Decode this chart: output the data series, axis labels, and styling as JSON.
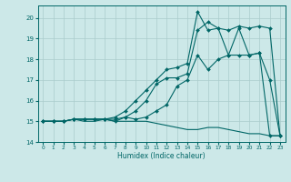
{
  "xlabel": "Humidex (Indice chaleur)",
  "bg_color": "#cce8e8",
  "grid_color": "#aacccc",
  "line_color": "#006666",
  "xlim": [
    -0.5,
    23.5
  ],
  "ylim": [
    14.0,
    20.6
  ],
  "yticks": [
    14,
    15,
    16,
    17,
    18,
    19,
    20
  ],
  "xticks": [
    0,
    1,
    2,
    3,
    4,
    5,
    6,
    7,
    8,
    9,
    10,
    11,
    12,
    13,
    14,
    15,
    16,
    17,
    18,
    19,
    20,
    21,
    22,
    23
  ],
  "series": [
    {
      "x": [
        0,
        1,
        2,
        3,
        4,
        5,
        6,
        7,
        8,
        9,
        10,
        11,
        12,
        13,
        14,
        15,
        16,
        17,
        18,
        19,
        20,
        21,
        22,
        23
      ],
      "y": [
        15.0,
        15.0,
        15.0,
        15.1,
        15.1,
        15.1,
        15.1,
        15.2,
        15.5,
        16.0,
        16.5,
        17.0,
        17.5,
        17.6,
        17.8,
        20.3,
        19.4,
        19.5,
        18.2,
        19.5,
        18.2,
        18.3,
        14.3,
        14.3
      ],
      "marker": true
    },
    {
      "x": [
        0,
        1,
        2,
        3,
        4,
        5,
        6,
        7,
        8,
        9,
        10,
        11,
        12,
        13,
        14,
        15,
        16,
        17,
        18,
        19,
        20,
        21,
        22,
        23
      ],
      "y": [
        15.0,
        15.0,
        15.0,
        15.1,
        15.1,
        15.1,
        15.1,
        15.1,
        15.2,
        15.5,
        16.0,
        16.8,
        17.1,
        17.1,
        17.3,
        19.4,
        19.8,
        19.5,
        19.4,
        19.6,
        19.5,
        19.6,
        19.5,
        14.3
      ],
      "marker": true
    },
    {
      "x": [
        0,
        1,
        2,
        3,
        4,
        5,
        6,
        7,
        8,
        9,
        10,
        11,
        12,
        13,
        14,
        15,
        16,
        17,
        18,
        19,
        20,
        21,
        22,
        23
      ],
      "y": [
        15.0,
        15.0,
        15.0,
        15.1,
        15.1,
        15.1,
        15.1,
        15.0,
        15.2,
        15.1,
        15.2,
        15.5,
        15.8,
        16.7,
        17.0,
        18.2,
        17.5,
        18.0,
        18.2,
        18.2,
        18.2,
        18.3,
        17.0,
        14.3
      ],
      "marker": true
    },
    {
      "x": [
        0,
        1,
        2,
        3,
        4,
        5,
        6,
        7,
        8,
        9,
        10,
        11,
        12,
        13,
        14,
        15,
        16,
        17,
        18,
        19,
        20,
        21,
        22,
        23
      ],
      "y": [
        15.0,
        15.0,
        15.0,
        15.1,
        15.0,
        15.0,
        15.1,
        15.0,
        15.0,
        15.0,
        15.0,
        14.9,
        14.8,
        14.7,
        14.6,
        14.6,
        14.7,
        14.7,
        14.6,
        14.5,
        14.4,
        14.4,
        14.3,
        14.3
      ],
      "marker": false
    }
  ]
}
